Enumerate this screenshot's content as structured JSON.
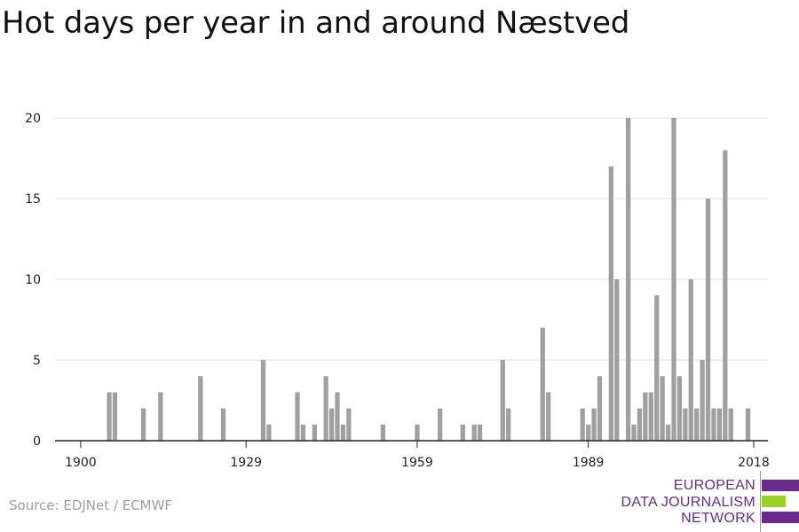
{
  "title": "Hot days per year in and around Næstved",
  "source": "Source: EDJNet / ECMWF",
  "logo": {
    "lines": [
      "EUROPEAN",
      "DATA JOURNALISM",
      "NETWORK"
    ],
    "purple": "#6b2a8e",
    "green": "#9ad22a"
  },
  "colors": {
    "bar": "#a0a0a0",
    "grid": "#e2e2e2",
    "axis": "#222222",
    "text": "#222222"
  },
  "chart_data": {
    "type": "bar",
    "title": "Hot days per year in and around Næstved",
    "xlabel": "",
    "ylabel": "",
    "xlim": [
      1896,
      2021
    ],
    "ylim": [
      0,
      20
    ],
    "yticks": [
      0,
      5,
      10,
      15,
      20
    ],
    "xticks": [
      1900,
      1929,
      1959,
      1989,
      2018
    ],
    "grid": true,
    "x": [
      1905,
      1906,
      1911,
      1914,
      1921,
      1925,
      1932,
      1933,
      1938,
      1939,
      1941,
      1943,
      1944,
      1945,
      1946,
      1947,
      1953,
      1959,
      1963,
      1967,
      1969,
      1970,
      1974,
      1975,
      1981,
      1982,
      1988,
      1989,
      1990,
      1991,
      1993,
      1994,
      1996,
      1997,
      1998,
      1999,
      2000,
      2001,
      2002,
      2003,
      2004,
      2005,
      2006,
      2007,
      2008,
      2009,
      2010,
      2011,
      2012,
      2013,
      2014,
      2017
    ],
    "values": [
      3,
      3,
      2,
      3,
      4,
      2,
      5,
      1,
      3,
      1,
      1,
      4,
      2,
      3,
      1,
      2,
      1,
      1,
      2,
      1,
      1,
      1,
      5,
      2,
      7,
      3,
      2,
      1,
      2,
      4,
      17,
      10,
      20,
      1,
      2,
      3,
      3,
      9,
      4,
      1,
      20,
      4,
      2,
      10,
      2,
      5,
      15,
      2,
      2,
      18,
      2,
      2
    ]
  }
}
